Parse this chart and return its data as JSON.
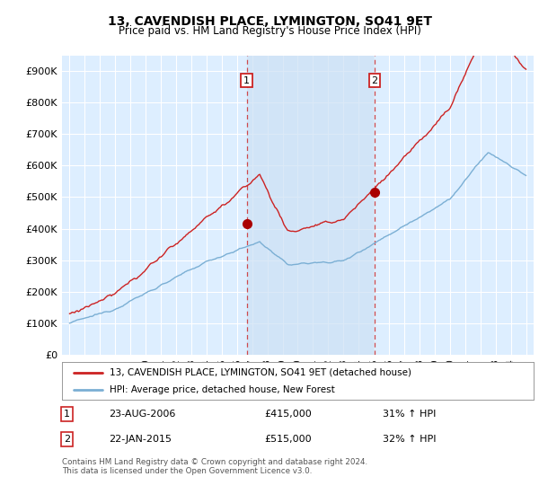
{
  "title": "13, CAVENDISH PLACE, LYMINGTON, SO41 9ET",
  "subtitle": "Price paid vs. HM Land Registry's House Price Index (HPI)",
  "ylim": [
    0,
    950000
  ],
  "yticks": [
    0,
    100000,
    200000,
    300000,
    400000,
    500000,
    600000,
    700000,
    800000,
    900000
  ],
  "ytick_labels": [
    "£0",
    "£100K",
    "£200K",
    "£300K",
    "£400K",
    "£500K",
    "£600K",
    "£700K",
    "£800K",
    "£900K"
  ],
  "hpi_color": "#7bafd4",
  "price_color": "#cc2222",
  "marker_color": "#aa0000",
  "purchase1_date": "23-AUG-2006",
  "purchase1_price": 415000,
  "purchase1_hpi": "31% ↑ HPI",
  "purchase2_date": "22-JAN-2015",
  "purchase2_price": 515000,
  "purchase2_hpi": "32% ↑ HPI",
  "legend_property": "13, CAVENDISH PLACE, LYMINGTON, SO41 9ET (detached house)",
  "legend_hpi": "HPI: Average price, detached house, New Forest",
  "footer": "Contains HM Land Registry data © Crown copyright and database right 2024.\nThis data is licensed under the Open Government Licence v3.0.",
  "background_chart": "#ddeeff",
  "background_fig": "#ffffff",
  "vline1_x": 2006.65,
  "vline2_x": 2015.05,
  "xlim_left": 1994.5,
  "xlim_right": 2025.5,
  "span_color": "#cce0f5",
  "grid_color": "#ffffff"
}
